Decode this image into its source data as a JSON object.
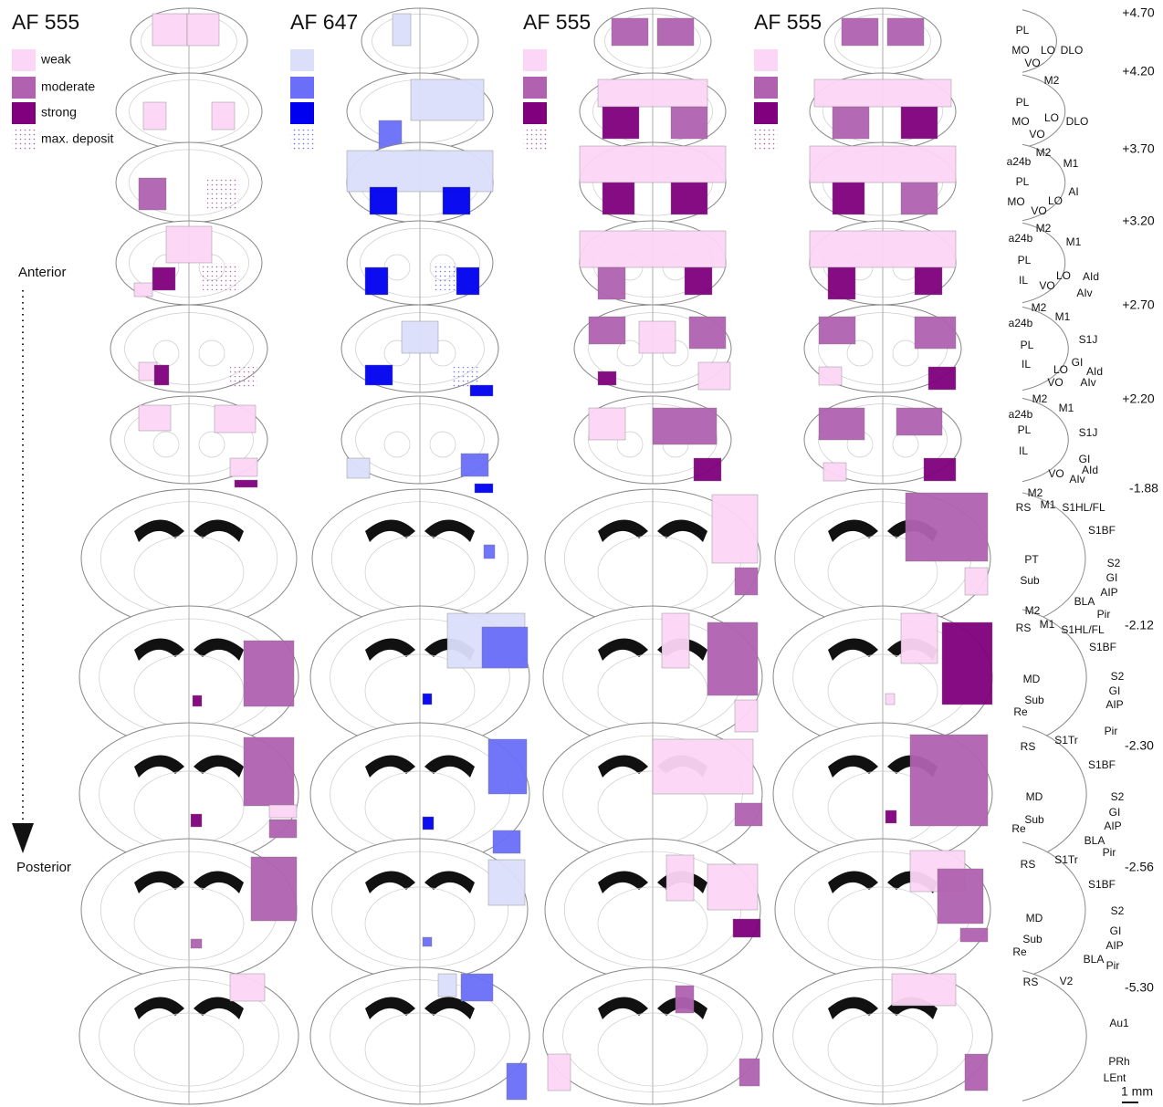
{
  "columns": [
    "AF 555",
    "AF 647",
    "AF 555",
    "AF 555"
  ],
  "legend": [
    "weak",
    "moderate",
    "strong",
    "max. deposit"
  ],
  "direction": {
    "anterior": "Anterior",
    "posterior": "Posterior"
  },
  "levels": [
    "+4.70",
    "+4.20",
    "+3.70",
    "+3.20",
    "+2.70",
    "+2.20",
    "-1.88",
    "-2.12",
    "-2.30",
    "-2.56",
    "-5.30"
  ],
  "atlas_labels": [
    [
      "PL",
      "MO",
      "LO",
      "DLO",
      "VO"
    ],
    [
      "M2",
      "PL",
      "MO",
      "LO",
      "DLO",
      "VO"
    ],
    [
      "M2",
      "a24b",
      "M1",
      "PL",
      "AI",
      "MO",
      "LO",
      "VO"
    ],
    [
      "M2",
      "a24b",
      "M1",
      "PL",
      "AId",
      "LO",
      "IL",
      "VO",
      "AIv"
    ],
    [
      "M2",
      "a24b",
      "M1",
      "PL",
      "S1J",
      "IL",
      "LO",
      "GI",
      "AId",
      "VO",
      "AIv"
    ],
    [
      "M2",
      "a24b",
      "M1",
      "PL",
      "S1J",
      "IL",
      "GI",
      "AId",
      "VO",
      "AIv"
    ],
    [
      "M2",
      "RS",
      "M1",
      "S1HL/FL",
      "S1BF",
      "PT",
      "S2",
      "GI",
      "Sub",
      "AIP",
      "BLA",
      "Pir"
    ],
    [
      "M2",
      "RS",
      "M1",
      "S1HL/FL",
      "S1BF",
      "MD",
      "S2",
      "GI",
      "Sub",
      "AIP",
      "Re",
      "Pir"
    ],
    [
      "RS",
      "S1Tr",
      "S1BF",
      "MD",
      "S2",
      "GI",
      "Sub",
      "AIP",
      "Re",
      "BLA",
      "Pir"
    ],
    [
      "RS",
      "S1Tr",
      "S1BF",
      "S2",
      "MD",
      "GI",
      "Sub",
      "AIP",
      "Re",
      "BLA",
      "Pir"
    ],
    [
      "RS",
      "V2",
      "Au1",
      "PRh",
      "LEnt"
    ]
  ],
  "scale_bar": "1 mm"
}
